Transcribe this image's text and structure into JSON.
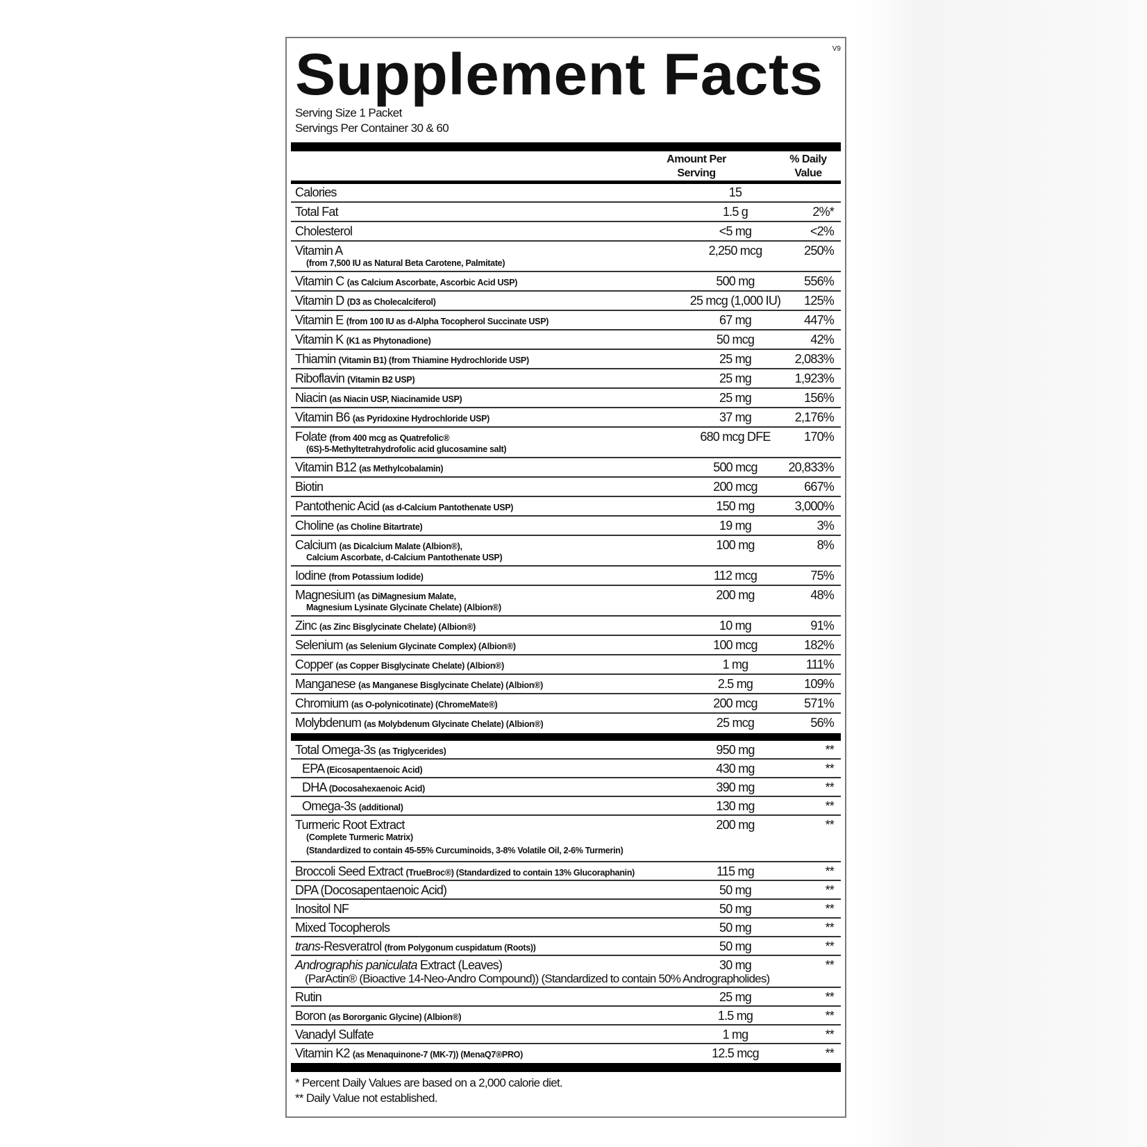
{
  "title": "Supplement Facts",
  "version": "V9",
  "serving_size": "Serving Size 1 Packet",
  "servings_per_container": "Servings Per Container 30 & 60",
  "header": {
    "amount_line1": "Amount Per",
    "amount_line2": "Serving",
    "dv_line1": "% Daily",
    "dv_line2": "Value"
  },
  "rows": [
    {
      "name": "Calories",
      "amount": "15",
      "dv": ""
    },
    {
      "name": "Total Fat",
      "amount": "1.5 g",
      "dv": "2%*"
    },
    {
      "name": "Cholesterol",
      "amount": "<5 mg",
      "dv": "<2%"
    },
    {
      "name": "Vitamin A",
      "sub": [
        "(from 7,500 IU as Natural Beta Carotene, Palmitate)"
      ],
      "amount": "2,250 mcg",
      "dv": "250%"
    },
    {
      "name": "Vitamin C",
      "note": "(as Calcium Ascorbate, Ascorbic Acid USP)",
      "amount": "500 mg",
      "dv": "556%"
    },
    {
      "name": "Vitamin D",
      "note": "(D3 as Cholecalciferol)",
      "amount": "25 mcg (1,000 IU)",
      "dv": "125%"
    },
    {
      "name": "Vitamin E",
      "note": "(from 100 IU as d-Alpha Tocopherol Succinate USP)",
      "amount": "67 mg",
      "dv": "447%"
    },
    {
      "name": "Vitamin K",
      "note": "(K1 as Phytonadione)",
      "amount": "50 mcg",
      "dv": "42%"
    },
    {
      "name": "Thiamin",
      "note": "(Vitamin B1) (from Thiamine Hydrochloride USP)",
      "amount": "25 mg",
      "dv": "2,083%"
    },
    {
      "name": "Riboflavin",
      "note": "(Vitamin B2 USP)",
      "amount": "25 mg",
      "dv": "1,923%"
    },
    {
      "name": "Niacin",
      "note": "(as Niacin USP, Niacinamide USP)",
      "amount": "25 mg",
      "dv": "156%"
    },
    {
      "name": "Vitamin B6",
      "note": "(as Pyridoxine Hydrochloride USP)",
      "amount": "37 mg",
      "dv": "2,176%"
    },
    {
      "name": "Folate",
      "note": "(from 400 mcg as Quatrefolic®",
      "sub": [
        "(6S)-5-Methyltetrahydrofolic acid glucosamine salt)"
      ],
      "amount": "680 mcg DFE",
      "dv": "170%"
    },
    {
      "name": "Vitamin B12",
      "note": "(as Methylcobalamin)",
      "amount": "500 mcg",
      "dv": "20,833%"
    },
    {
      "name": "Biotin",
      "amount": "200 mcg",
      "dv": "667%"
    },
    {
      "name": "Pantothenic Acid",
      "note": "(as d-Calcium Pantothenate USP)",
      "amount": "150 mg",
      "dv": "3,000%"
    },
    {
      "name": "Choline",
      "note": "(as Choline Bitartrate)",
      "amount": "19 mg",
      "dv": "3%"
    },
    {
      "name": "Calcium",
      "note": "(as Dicalcium Malate (Albion®),",
      "sub": [
        "Calcium Ascorbate, d-Calcium Pantothenate USP)"
      ],
      "amount": "100 mg",
      "dv": "8%"
    },
    {
      "name": "Iodine",
      "note": "(from Potassium Iodide)",
      "amount": "112 mcg",
      "dv": "75%"
    },
    {
      "name": "Magnesium",
      "note": "(as DiMagnesium Malate,",
      "sub": [
        "Magnesium Lysinate Glycinate Chelate) (Albion®)"
      ],
      "amount": "200 mg",
      "dv": "48%"
    },
    {
      "name": "Zinc",
      "note": "(as Zinc Bisglycinate Chelate) (Albion®)",
      "amount": "10 mg",
      "dv": "91%"
    },
    {
      "name": "Selenium",
      "note": "(as Selenium Glycinate Complex) (Albion®)",
      "amount": "100 mcg",
      "dv": "182%"
    },
    {
      "name": "Copper",
      "note": "(as Copper Bisglycinate Chelate) (Albion®)",
      "amount": "1 mg",
      "dv": "111%"
    },
    {
      "name": "Manganese",
      "note": "(as Manganese Bisglycinate Chelate) (Albion®)",
      "amount": "2.5 mg",
      "dv": "109%"
    },
    {
      "name": "Chromium",
      "note": "(as O-polynicotinate) (ChromeMate®)",
      "amount": "200 mcg",
      "dv": "571%"
    },
    {
      "name": "Molybdenum",
      "note": "(as Molybdenum Glycinate Chelate) (Albion®)",
      "amount": "25 mcg",
      "dv": "56%"
    },
    {
      "name": "Total Omega-3s",
      "note": "(as Triglycerides)",
      "amount": "950 mg",
      "dv": "**"
    },
    {
      "name": "EPA",
      "note": "(Eicosapentaenoic Acid)",
      "amount": "430 mg",
      "dv": "**",
      "indent": true
    },
    {
      "name": "DHA",
      "note": "(Docosahexaenoic Acid)",
      "amount": "390 mg",
      "dv": "**",
      "indent": true
    },
    {
      "name": "Omega-3s",
      "note": "(additional)",
      "amount": "130 mg",
      "dv": "**",
      "indent": true
    },
    {
      "name": "Turmeric Root Extract",
      "sub": [
        "(Complete Turmeric Matrix)",
        "(Standardized to contain 45-55% Curcuminoids, 3-8% Volatile Oil, 2-6% Turmerin)"
      ],
      "amount": "200 mg",
      "dv": "**"
    },
    {
      "name": "Broccoli Seed Extract",
      "note": "(TrueBroc®) (Standardized to contain 13% Glucoraphanin)",
      "amount": "115 mg",
      "dv": "**"
    },
    {
      "name": "DPA (Docosapentaenoic Acid)",
      "amount": "50 mg",
      "dv": "**"
    },
    {
      "name": "Inositol NF",
      "amount": "50 mg",
      "dv": "**"
    },
    {
      "name": "Mixed Tocopherols",
      "amount": "50 mg",
      "dv": "**"
    },
    {
      "italic": "trans",
      "name": "-Resveratrol",
      "note": "(from Polygonum cuspidatum (Roots))",
      "amount": "50 mg",
      "dv": "**"
    },
    {
      "italic": "Andrographis paniculata",
      "name": " Extract (Leaves)",
      "sub_big": [
        "(ParActin® (Bioactive 14-Neo-Andro Compound)) (Standardized to contain 50% Andrographolides)"
      ],
      "amount": "30 mg",
      "dv": "**"
    },
    {
      "name": "Rutin",
      "amount": "25 mg",
      "dv": "**"
    },
    {
      "name": "Boron",
      "note": "(as Bororganic Glycine) (Albion®)",
      "amount": "1.5 mg",
      "dv": "**"
    },
    {
      "name": "Vanadyl Sulfate",
      "amount": "1 mg",
      "dv": "**"
    },
    {
      "name": "Vitamin K2",
      "note": "(as Menaquinone-7 (MK-7)) (MenaQ7®PRO)",
      "amount": "12.5 mcg",
      "dv": "**"
    }
  ],
  "footnotes": [
    "*  Percent Daily Values are based on a 2,000 calorie diet.",
    "**  Daily Value not established."
  ]
}
